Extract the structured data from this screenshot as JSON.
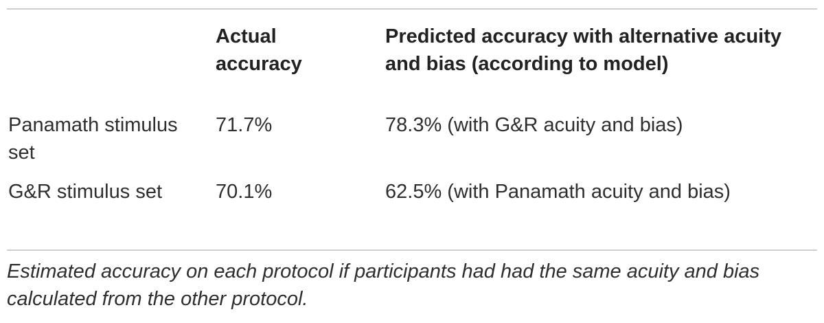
{
  "table": {
    "headers": [
      "",
      "Actual accuracy",
      "Predicted accuracy with alternative acuity and bias (according to model)"
    ],
    "rows": [
      {
        "label": "Panamath stimulus set",
        "actual": "71.7%",
        "predicted": "78.3% (with G&R acuity and bias)"
      },
      {
        "label": "G&R stimulus set",
        "actual": "70.1%",
        "predicted": "62.5% (with Panamath acuity and bias)"
      }
    ]
  },
  "caption": "Estimated accuracy on each protocol if participants had had the same acuity and bias calculated from the other protocol."
}
